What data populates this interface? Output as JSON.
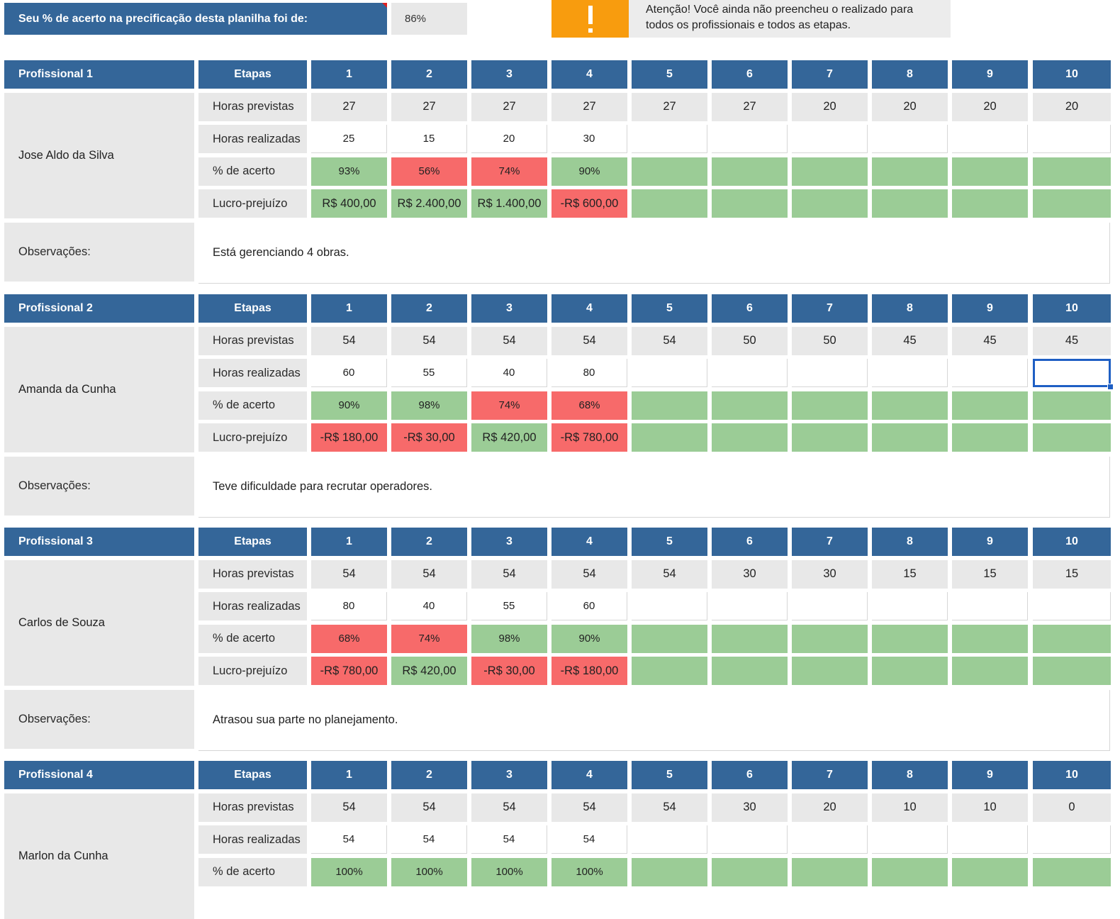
{
  "top": {
    "score_label": "Seu % de acerto na precificação desta planilha foi de:",
    "score_value": "86%",
    "warning_icon": "exclamation-icon",
    "warning_text_1": "Atenção! Você ainda não preencheu o realizado para",
    "warning_text_2": "todos os profissionais e todos as etapas.",
    "colors": {
      "header": "#346699",
      "warning": "#f89c0e",
      "good": "#9bcc96",
      "bad": "#f76a6a",
      "label_bg": "#e8e8e8"
    }
  },
  "etapas_label": "Etapas",
  "stages": [
    "1",
    "2",
    "3",
    "4",
    "5",
    "6",
    "7",
    "8",
    "9",
    "10"
  ],
  "row_labels": {
    "previstas": "Horas previstas",
    "realizadas": "Horas realizadas",
    "acerto": "% de acerto",
    "lucro": "Lucro-prejuízo",
    "observacoes": "Observações:"
  },
  "professionals": [
    {
      "title": "Profissional 1",
      "name": "Jose Aldo da Silva",
      "previstas": [
        "27",
        "27",
        "27",
        "27",
        "27",
        "27",
        "20",
        "20",
        "20",
        "20"
      ],
      "realizadas": [
        "25",
        "15",
        "20",
        "30",
        "",
        "",
        "",
        "",
        "",
        ""
      ],
      "acerto": [
        "93%",
        "56%",
        "74%",
        "90%",
        "",
        "",
        "",
        "",
        "",
        ""
      ],
      "acerto_status": [
        "good",
        "bad",
        "bad",
        "good",
        "good",
        "good",
        "good",
        "good",
        "good",
        "good"
      ],
      "lucro": [
        "R$ 400,00",
        "R$ 2.400,00",
        "R$ 1.400,00",
        "-R$ 600,00",
        "",
        "",
        "",
        "",
        "",
        ""
      ],
      "lucro_status": [
        "good",
        "good",
        "good",
        "bad",
        "good",
        "good",
        "good",
        "good",
        "good",
        "good"
      ],
      "observacao": "Está gerenciando 4 obras."
    },
    {
      "title": "Profissional 2",
      "name": "Amanda da Cunha",
      "previstas": [
        "54",
        "54",
        "54",
        "54",
        "54",
        "50",
        "50",
        "45",
        "45",
        "45"
      ],
      "realizadas": [
        "60",
        "55",
        "40",
        "80",
        "",
        "",
        "",
        "",
        "",
        ""
      ],
      "acerto": [
        "90%",
        "98%",
        "74%",
        "68%",
        "",
        "",
        "",
        "",
        "",
        ""
      ],
      "acerto_status": [
        "good",
        "good",
        "bad",
        "bad",
        "good",
        "good",
        "good",
        "good",
        "good",
        "good"
      ],
      "lucro": [
        "-R$ 180,00",
        "-R$ 30,00",
        "R$ 420,00",
        "-R$ 780,00",
        "",
        "",
        "",
        "",
        "",
        ""
      ],
      "lucro_status": [
        "bad",
        "bad",
        "good",
        "bad",
        "good",
        "good",
        "good",
        "good",
        "good",
        "good"
      ],
      "observacao": "Teve dificuldade para recrutar operadores."
    },
    {
      "title": "Profissional 3",
      "name": "Carlos de Souza",
      "previstas": [
        "54",
        "54",
        "54",
        "54",
        "54",
        "30",
        "30",
        "15",
        "15",
        "15"
      ],
      "realizadas": [
        "80",
        "40",
        "55",
        "60",
        "",
        "",
        "",
        "",
        "",
        ""
      ],
      "acerto": [
        "68%",
        "74%",
        "98%",
        "90%",
        "",
        "",
        "",
        "",
        "",
        ""
      ],
      "acerto_status": [
        "bad",
        "bad",
        "good",
        "good",
        "good",
        "good",
        "good",
        "good",
        "good",
        "good"
      ],
      "lucro": [
        "-R$ 780,00",
        "R$ 420,00",
        "-R$ 30,00",
        "-R$ 180,00",
        "",
        "",
        "",
        "",
        "",
        ""
      ],
      "lucro_status": [
        "bad",
        "good",
        "bad",
        "bad",
        "good",
        "good",
        "good",
        "good",
        "good",
        "good"
      ],
      "observacao": "Atrasou sua parte no planejamento."
    },
    {
      "title": "Profissional 4",
      "name": "Marlon da Cunha",
      "previstas": [
        "54",
        "54",
        "54",
        "54",
        "54",
        "30",
        "20",
        "10",
        "10",
        "0"
      ],
      "realizadas": [
        "54",
        "54",
        "54",
        "54",
        "",
        "",
        "",
        "",
        "",
        ""
      ],
      "acerto": [
        "100%",
        "100%",
        "100%",
        "100%",
        "",
        "",
        "",
        "",
        "",
        ""
      ],
      "acerto_status": [
        "good",
        "good",
        "good",
        "good",
        "good",
        "good",
        "good",
        "good",
        "good",
        "good"
      ],
      "lucro": [],
      "lucro_status": [],
      "observacao": ""
    }
  ]
}
